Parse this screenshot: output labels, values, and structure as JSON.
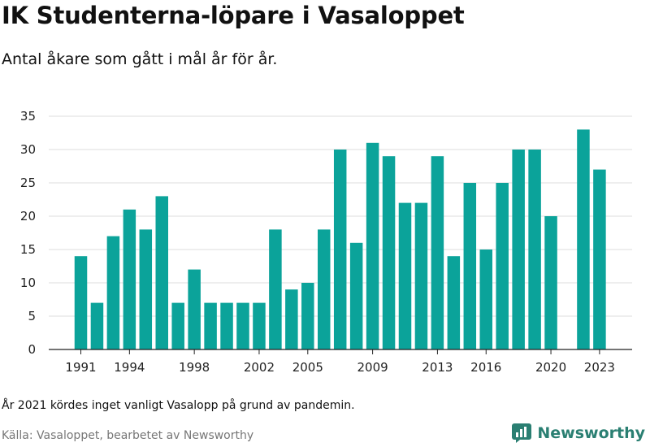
{
  "header": {
    "title": "IK Studenterna-löpare i Vasaloppet",
    "subtitle": "Antal åkare som gått i mål år för år."
  },
  "footer": {
    "note": "År 2021 kördes inget vanligt Vasalopp på grund av pandemin.",
    "source": "Källa: Vasaloppet, bearbetet av Newsworthy",
    "brand": "Newsworthy"
  },
  "colors": {
    "bar": "#0ba39a",
    "grid": "#dddddd",
    "axis": "#222222",
    "brand": "#2a7f72"
  },
  "chart_data": {
    "type": "bar",
    "title": "IK Studenterna-löpare i Vasaloppet",
    "subtitle": "Antal åkare som gått i mål år för år.",
    "xlabel": "",
    "ylabel": "",
    "ylim": [
      0,
      35
    ],
    "yticks": [
      0,
      5,
      10,
      15,
      20,
      25,
      30,
      35
    ],
    "xtick_labels": [
      "1991",
      "1994",
      "1998",
      "2002",
      "2005",
      "2009",
      "2013",
      "2016",
      "2020",
      "2023"
    ],
    "grid": true,
    "legend": "none",
    "categories": [
      "1991",
      "1992",
      "1993",
      "1994",
      "1995",
      "1996",
      "1997",
      "1998",
      "1999",
      "2000",
      "2001",
      "2002",
      "2003",
      "2004",
      "2005",
      "2006",
      "2007",
      "2008",
      "2009",
      "2010",
      "2011",
      "2012",
      "2013",
      "2014",
      "2015",
      "2016",
      "2017",
      "2018",
      "2019",
      "2020",
      "2021",
      "2022",
      "2023"
    ],
    "values": [
      14,
      7,
      17,
      21,
      18,
      23,
      7,
      12,
      7,
      7,
      7,
      7,
      18,
      9,
      10,
      18,
      30,
      16,
      31,
      29,
      22,
      22,
      29,
      14,
      25,
      15,
      25,
      30,
      30,
      20,
      null,
      33,
      27
    ]
  }
}
